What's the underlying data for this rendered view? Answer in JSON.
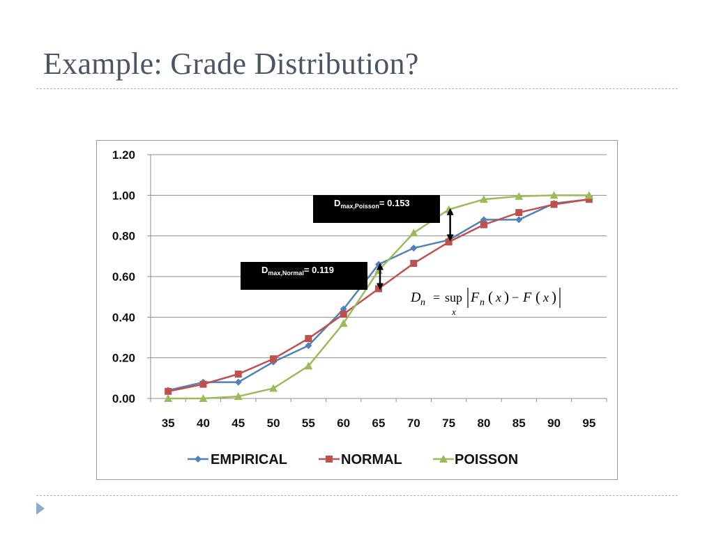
{
  "slide": {
    "title": "Example: Grade Distribution?"
  },
  "chart_data": {
    "type": "line",
    "x": [
      35,
      40,
      45,
      50,
      55,
      60,
      65,
      70,
      75,
      80,
      85,
      90,
      95
    ],
    "categories": [
      "35",
      "40",
      "45",
      "50",
      "55",
      "60",
      "65",
      "70",
      "75",
      "80",
      "85",
      "90",
      "95"
    ],
    "ylim": [
      0,
      1.2
    ],
    "yticks": [
      "0.00",
      "0.20",
      "0.40",
      "0.60",
      "0.80",
      "1.00",
      "1.20"
    ],
    "ytick_values": [
      0,
      0.2,
      0.4,
      0.6,
      0.8,
      1.0,
      1.2
    ],
    "grid": true,
    "legend_position": "bottom",
    "series": [
      {
        "name": "EMPIRICAL",
        "color": "#4f81bd",
        "marker": "diamond",
        "values": [
          0.04,
          0.08,
          0.08,
          0.18,
          0.26,
          0.44,
          0.66,
          0.74,
          0.78,
          0.88,
          0.88,
          0.96,
          0.98
        ]
      },
      {
        "name": "NORMAL",
        "color": "#c0504d",
        "marker": "square",
        "values": [
          0.035,
          0.07,
          0.12,
          0.195,
          0.295,
          0.415,
          0.54,
          0.665,
          0.77,
          0.855,
          0.915,
          0.955,
          0.98
        ]
      },
      {
        "name": "POISSON",
        "color": "#9bbb59",
        "marker": "triangle",
        "values": [
          0.0,
          0.0,
          0.01,
          0.05,
          0.16,
          0.37,
          0.63,
          0.815,
          0.93,
          0.98,
          0.995,
          1.0,
          1.0
        ]
      }
    ],
    "annotations": [
      {
        "main": "D",
        "sub": "max,Poisson",
        "value_text": "= 0.153",
        "x": 75,
        "y_low": 0.78,
        "y_high": 0.93
      },
      {
        "main": "D",
        "sub": "max,Normal",
        "value_text": "= 0.119",
        "x": 65,
        "y_low": 0.54,
        "y_high": 0.66
      }
    ],
    "formula": {
      "lhs": "D",
      "lhs_sub": "n",
      "eq": "=",
      "op": "sup",
      "op_sub": "x",
      "f1": "F",
      "f1_sub": "n",
      "arg": "x",
      "minus": "−",
      "f2": "F"
    }
  }
}
